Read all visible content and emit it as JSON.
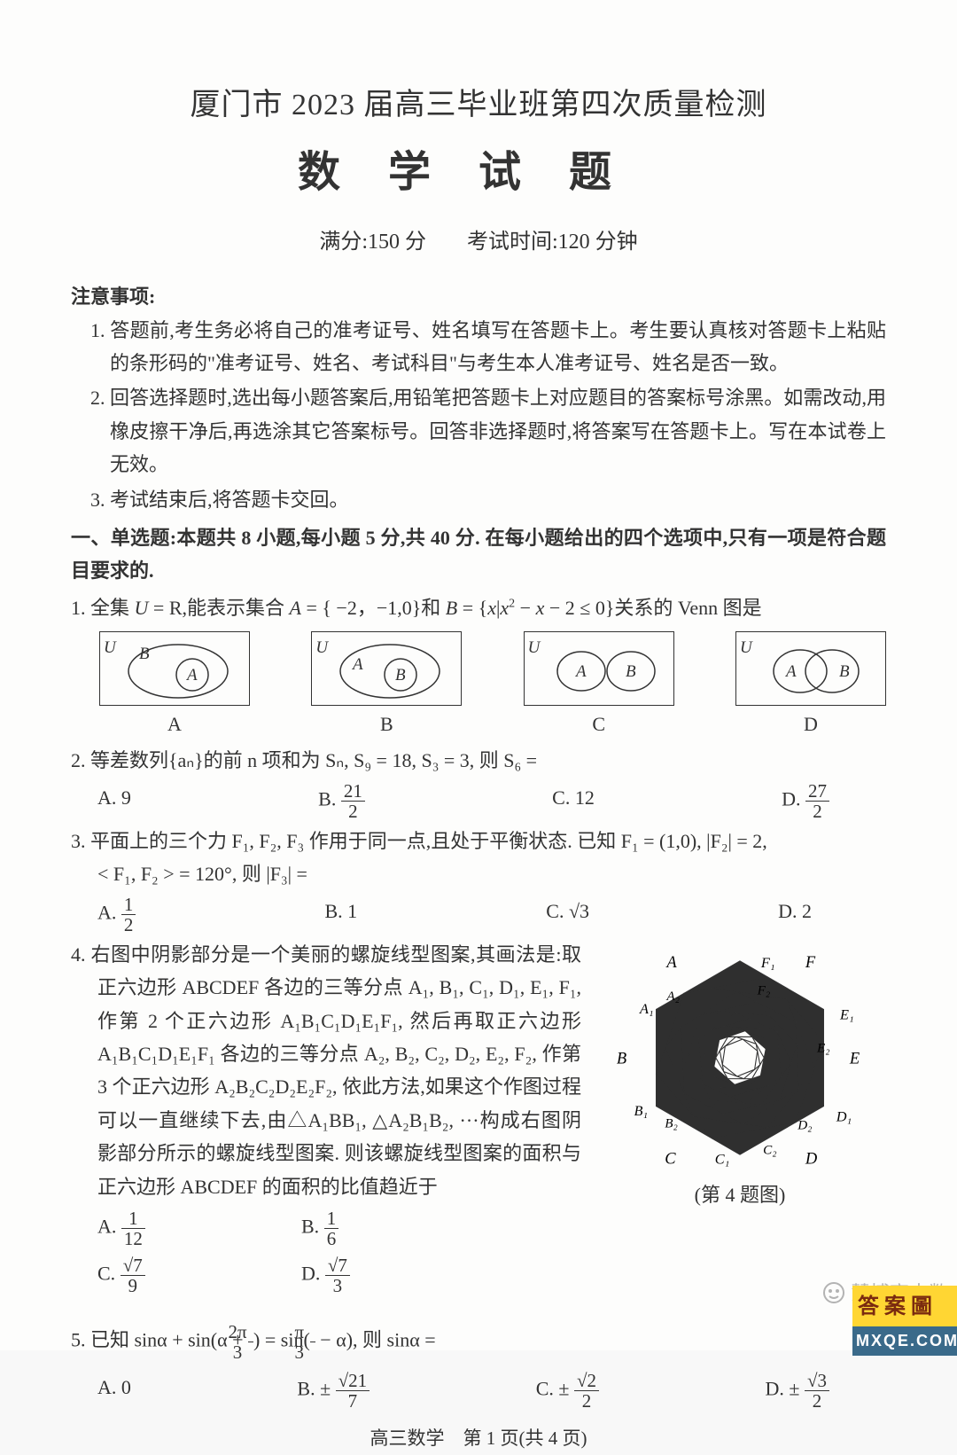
{
  "header": {
    "title": "厦门市 2023 届高三毕业班第四次质量检测",
    "subject": "数学试题",
    "full_marks_label": "满分:150 分",
    "time_label": "考试时间:120 分钟"
  },
  "notice": {
    "head": "注意事项:",
    "items": [
      "1. 答题前,考生务必将自己的准考证号、姓名填写在答题卡上。考生要认真核对答题卡上粘贴的条形码的\"准考证号、姓名、考试科目\"与考生本人准考证号、姓名是否一致。",
      "2. 回答选择题时,选出每小题答案后,用铅笔把答题卡上对应题目的答案标号涂黑。如需改动,用橡皮擦干净后,再选涂其它答案标号。回答非选择题时,将答案写在答题卡上。写在本试卷上无效。",
      "3. 考试结束后,将答题卡交回。"
    ]
  },
  "part1": {
    "head": "一、单选题:本题共 8 小题,每小题 5 分,共 40 分. 在每小题给出的四个选项中,只有一项是符合题目要求的."
  },
  "q1": {
    "text_before": "1. 全集 ",
    "text_mid": " = R,能表示集合 ",
    "text_mid2": " = { −2，−1,0}和 ",
    "text_mid3": " = {",
    "text_mid4": " − ",
    "text_mid5": " − 2 ≤ 0}关系的 Venn 图是",
    "choices": [
      "A",
      "B",
      "C",
      "D"
    ]
  },
  "q2": {
    "text": "2. 等差数列{aₙ}的前 n 项和为 Sₙ, S₉ = 18, S₃ = 3, 则 S₆ =",
    "A": "A. 9",
    "B_label": "B. ",
    "B_num": "21",
    "B_den": "2",
    "C": "C. 12",
    "D_label": "D. ",
    "D_num": "27",
    "D_den": "2"
  },
  "q3": {
    "line1": "3. 平面上的三个力 F₁, F₂, F₃ 作用于同一点,且处于平衡状态. 已知 F₁ = (1,0), |F₂| = 2,",
    "line2": "< F₁, F₂ > = 120°, 则 |F₃| =",
    "A_label": "A. ",
    "A_num": "1",
    "A_den": "2",
    "B": "B. 1",
    "C": "C. √3",
    "D": "D. 2"
  },
  "q4": {
    "p1": "4. 右图中阴影部分是一个美丽的螺旋线型图案,其画法是:取正六边形 ABCDEF 各边的三等分点 A₁, B₁, C₁, D₁, E₁, F₁, 作第 2 个正六边形 A₁B₁C₁D₁E₁F₁, 然后再取正六边形 A₁B₁C₁D₁E₁F₁ 各边的三等分点 A₂, B₂, C₂, D₂, E₂, F₂, 作第 3 个正六边形 A₂B₂C₂D₂E₂F₂, 依此方法,如果这个作图过程可以一直继续下去,由△A₁BB₁, △A₂B₁B₂, ···构成右图阴影部分所示的螺旋线型图案. 则该螺旋线型图案的面积与正六边形 ABCDEF 的面积的比值趋近于",
    "A_label": "A. ",
    "A_num": "1",
    "A_den": "12",
    "B_label": "B. ",
    "B_num": "1",
    "B_den": "6",
    "C_label": "C. ",
    "C_num": "√7",
    "C_den": "9",
    "D_label": "D. ",
    "D_num": "√7",
    "D_den": "3",
    "caption": "(第 4 题图)",
    "labels": {
      "A": "A",
      "B": "B",
      "C": "C",
      "D": "D",
      "E": "E",
      "F": "F",
      "A1": "A₁",
      "B1": "B₁",
      "C1": "C₁",
      "D1": "D₁",
      "E1": "E₁",
      "F1": "F₁",
      "A2": "A₂",
      "B2": "B₂",
      "C2": "C₂",
      "D2": "D₂",
      "E2": "E₂",
      "F2": "F₂"
    }
  },
  "q5": {
    "text_a": "5. 已知 sinα + sin(α + ",
    "text_b": ") = sin(",
    "text_c": " − α), 则 sinα =",
    "f1_num": "2π",
    "f1_den": "3",
    "f2_num": "π",
    "f2_den": "3",
    "A": "A. 0",
    "B_label": "B. ± ",
    "B_num": "√21",
    "B_den": "7",
    "C_label": "C. ± ",
    "C_num": "√2",
    "C_den": "2",
    "D_label": "D. ± ",
    "D_num": "√3",
    "D_den": "2"
  },
  "footer": "高三数学　第 1 页(共 4 页)",
  "watermark": {
    "text": "慧博高中数",
    "brand_top": "答案圖",
    "brand_bot": "MXQE.COM"
  },
  "colors": {
    "fg": "#333333",
    "bg": "#fdfdfc",
    "accent_yellow": "#ffd633",
    "accent_blue": "#3a6a8a",
    "wm_gray": "#b3b3b3"
  }
}
